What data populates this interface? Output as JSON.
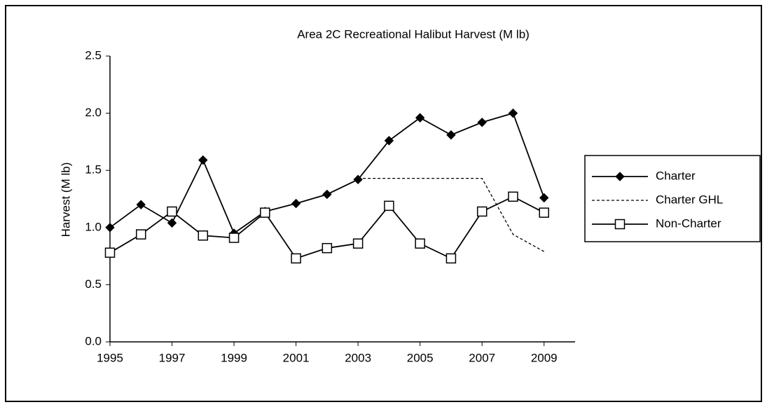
{
  "chart_data": {
    "type": "line",
    "title": "Area 2C Recreational Halibut Harvest (M lb)",
    "y_label": "Harvest (M lb)",
    "x": [
      1995,
      1996,
      1997,
      1998,
      1999,
      2000,
      2001,
      2002,
      2003,
      2004,
      2005,
      2006,
      2007,
      2008,
      2009
    ],
    "series": [
      {
        "name": "Charter",
        "color": "#000000",
        "marker": "diamond",
        "dash": false,
        "values": [
          1.0,
          1.2,
          1.04,
          1.59,
          0.95,
          1.14,
          1.21,
          1.29,
          1.42,
          1.76,
          1.96,
          1.81,
          1.92,
          2.0,
          1.26
        ]
      },
      {
        "name": "Charter GHL",
        "color": "#000000",
        "marker": null,
        "dash": true,
        "values": [
          null,
          null,
          null,
          null,
          null,
          null,
          null,
          null,
          1.43,
          1.43,
          1.43,
          1.43,
          1.43,
          0.94,
          0.79
        ]
      },
      {
        "name": "Non-Charter",
        "color": "#000000",
        "marker": "square",
        "dash": false,
        "values": [
          0.78,
          0.94,
          1.14,
          0.93,
          0.91,
          1.13,
          0.73,
          0.82,
          0.86,
          1.19,
          0.86,
          0.73,
          1.14,
          1.27,
          1.13
        ]
      }
    ],
    "xlim": [
      1995,
      2010
    ],
    "xticks": [
      1995,
      1997,
      1999,
      2001,
      2003,
      2005,
      2007,
      2009
    ],
    "ylim": [
      0,
      2.5
    ],
    "yticks": [
      {
        "value": 0,
        "label": "0.0"
      },
      0.5,
      {
        "value": 1,
        "label": "1.0"
      },
      1.5,
      {
        "value": 2,
        "label": "2.0"
      },
      2.5
    ],
    "grid": false,
    "legend": "right"
  }
}
